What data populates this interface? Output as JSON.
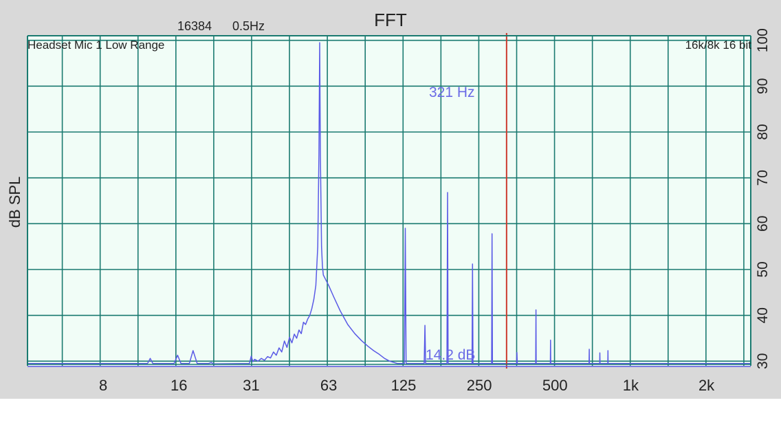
{
  "window": {
    "title": "FFT",
    "fft_size": "16384",
    "resolution": "0.5Hz",
    "channel_label": "Headset Mic 1 Low Range",
    "format_label": "16k/8k 16 bit"
  },
  "cursor": {
    "frequency_label": "321 Hz",
    "level_label": "14.2 dB",
    "frequency_hz": 321
  },
  "colors": {
    "frame": "#d9d9d9",
    "plot_background": "#f1fdf7",
    "grid": "#1a7a70",
    "trace": "#5a5ae6",
    "cursor": "#cc3a2e",
    "cursor_text": "#6a6ae6",
    "text": "#222222"
  },
  "chart_data": {
    "type": "line",
    "title": "FFT",
    "xlabel": "",
    "ylabel": "dB SPL",
    "x_scale": "log",
    "xlim": [
      4,
      3000
    ],
    "ylim": [
      29,
      101
    ],
    "grid": true,
    "x_tick_labels": [
      {
        "value": 8,
        "label": "8"
      },
      {
        "value": 16,
        "label": "16"
      },
      {
        "value": 31,
        "label": "31"
      },
      {
        "value": 63,
        "label": "63"
      },
      {
        "value": 125,
        "label": "125"
      },
      {
        "value": 250,
        "label": "250"
      },
      {
        "value": 500,
        "label": "500"
      },
      {
        "value": 1000,
        "label": "1k"
      },
      {
        "value": 2000,
        "label": "2k"
      }
    ],
    "y_ticks": [
      30,
      40,
      50,
      60,
      70,
      80,
      90,
      100
    ],
    "series": [
      {
        "points": [
          [
            4,
            29.5
          ],
          [
            12,
            29.5
          ],
          [
            12.3,
            30.6
          ],
          [
            12.6,
            29.5
          ],
          [
            15.3,
            29.5
          ],
          [
            15.8,
            31.3
          ],
          [
            16.3,
            29.5
          ],
          [
            17.6,
            29.5
          ],
          [
            18.2,
            32.3
          ],
          [
            18.9,
            29.5
          ],
          [
            21,
            29.5
          ],
          [
            21.5,
            29.7
          ],
          [
            22,
            29.4
          ],
          [
            30.5,
            29.5
          ],
          [
            31,
            31.1
          ],
          [
            31.5,
            29.9
          ],
          [
            32,
            30.4
          ],
          [
            33,
            30.0
          ],
          [
            34,
            30.6
          ],
          [
            35,
            30.2
          ],
          [
            36,
            31.0
          ],
          [
            37,
            30.7
          ],
          [
            38,
            32.0
          ],
          [
            39,
            31.3
          ],
          [
            40,
            32.9
          ],
          [
            41,
            32.0
          ],
          [
            42,
            34.4
          ],
          [
            43,
            33.0
          ],
          [
            44,
            35.2
          ],
          [
            45,
            34.0
          ],
          [
            46,
            35.9
          ],
          [
            47,
            35.0
          ],
          [
            48,
            36.8
          ],
          [
            49,
            36.0
          ],
          [
            50,
            38.5
          ],
          [
            51,
            38.0
          ],
          [
            52,
            39.2
          ],
          [
            53,
            40.0
          ],
          [
            54,
            41.5
          ],
          [
            55,
            43.5
          ],
          [
            56,
            46.5
          ],
          [
            57,
            55.0
          ],
          [
            57.6,
            75.0
          ],
          [
            58,
            99.5
          ],
          [
            58.4,
            75.0
          ],
          [
            59,
            55.0
          ],
          [
            59.5,
            50.7
          ],
          [
            60,
            48.8
          ],
          [
            61,
            48.0
          ],
          [
            63,
            46.5
          ],
          [
            66,
            44.0
          ],
          [
            70,
            41.0
          ],
          [
            75,
            38.0
          ],
          [
            80,
            36.0
          ],
          [
            85,
            34.5
          ],
          [
            90,
            33.3
          ],
          [
            95,
            32.3
          ],
          [
            100,
            31.5
          ],
          [
            105,
            30.6
          ],
          [
            110,
            30.0
          ],
          [
            118,
            29.5
          ],
          [
            126,
            29.5
          ],
          [
            127,
            59.0
          ],
          [
            128,
            29.5
          ],
          [
            151,
            29.5
          ],
          [
            152,
            37.8
          ],
          [
            153,
            29.5
          ],
          [
            186,
            29.5
          ],
          [
            187,
            66.8
          ],
          [
            188,
            29.5
          ],
          [
            234,
            29.5
          ],
          [
            235,
            51.2
          ],
          [
            236,
            29.5
          ],
          [
            280,
            29.5
          ],
          [
            281,
            57.8
          ],
          [
            282,
            29.5
          ],
          [
            352,
            29.5
          ],
          [
            353,
            31.9
          ],
          [
            354,
            29.5
          ],
          [
            419,
            29.5
          ],
          [
            420,
            41.2
          ],
          [
            421,
            29.5
          ],
          [
            479,
            29.5
          ],
          [
            480,
            34.6
          ],
          [
            481,
            29.5
          ],
          [
            683,
            29.5
          ],
          [
            684,
            32.6
          ],
          [
            685,
            29.5
          ],
          [
            753,
            29.5
          ],
          [
            754,
            31.8
          ],
          [
            755,
            29.5
          ],
          [
            811,
            29.5
          ],
          [
            812,
            32.3
          ],
          [
            813,
            29.5
          ],
          [
            3000,
            29.5
          ]
        ]
      }
    ]
  }
}
